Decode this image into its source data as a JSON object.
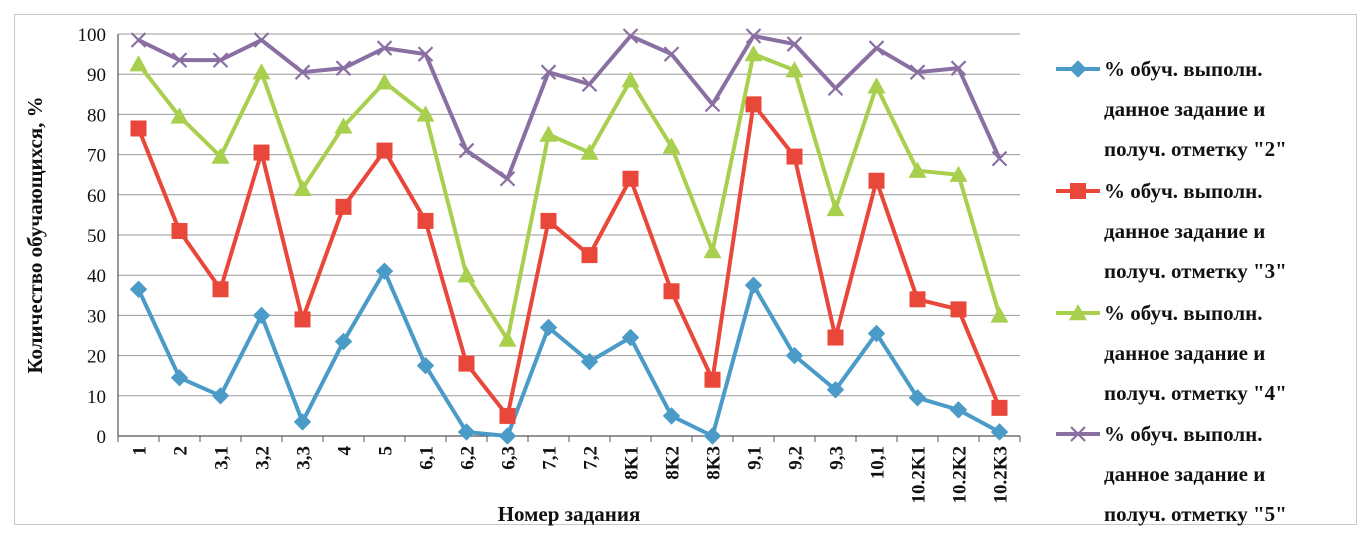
{
  "chart_data": {
    "type": "line",
    "xlabel": "Номер задания",
    "ylabel": "Количество обучающихся, %",
    "ylim": [
      0,
      100
    ],
    "yticks": [
      "0",
      "10",
      "20",
      "30",
      "40",
      "50",
      "60",
      "70",
      "80",
      "90",
      "100"
    ],
    "grid": true,
    "legend_position": "right",
    "categories": [
      "1",
      "2",
      "3,1",
      "3,2",
      "3,3",
      "4",
      "5",
      "6,1",
      "6,2",
      "6,3",
      "7,1",
      "7,2",
      "8K1",
      "8K2",
      "8K3",
      "9,1",
      "9,2",
      "9,3",
      "10,1",
      "10.2K1",
      "10.2K2",
      "10.2K3"
    ],
    "series": [
      {
        "name": "% обуч. выполн. данное задание и получ. отметку \"2\"",
        "legend_lines": [
          "% обуч. выполн.",
          "данное задание и",
          "получ. отметку \"2\""
        ],
        "color": "#4a9bc7",
        "marker": "diamond",
        "values": [
          36.5,
          14.5,
          10,
          30,
          3.5,
          23.5,
          41,
          17.5,
          1,
          0,
          27,
          18.5,
          24.5,
          5,
          0,
          37.5,
          20,
          11.5,
          25.5,
          9.5,
          6.5,
          1
        ]
      },
      {
        "name": "% обуч. выполн. данное задание и получ. отметку \"3\"",
        "legend_lines": [
          "% обуч. выполн.",
          "данное задание и",
          "получ. отметку \"3\""
        ],
        "color": "#e8473a",
        "marker": "square",
        "values": [
          76.5,
          51,
          36.5,
          70.5,
          29,
          57,
          71,
          53.5,
          18,
          5,
          53.5,
          45,
          64,
          36,
          14,
          82.5,
          69.5,
          24.5,
          63.5,
          34,
          31.5,
          7
        ]
      },
      {
        "name": "% обуч. выполн. данное задание и получ. отметку \"4\"",
        "legend_lines": [
          "% обуч. выполн.",
          "данное задание и",
          "получ. отметку \"4\""
        ],
        "color": "#a9cf4e",
        "marker": "triangle",
        "values": [
          92.5,
          79.5,
          69.5,
          90.5,
          61.5,
          77,
          88,
          80,
          40,
          24,
          75,
          70.5,
          88.5,
          72,
          46,
          95,
          91,
          56.5,
          87,
          66,
          65,
          30
        ]
      },
      {
        "name": "% обуч. выполн. данное задание и получ. отметку \"5\"",
        "legend_lines": [
          "% обуч. выполн.",
          "данное задание и",
          "получ. отметку \"5\""
        ],
        "color": "#8a6fa3",
        "marker": "x",
        "values": [
          98.5,
          93.5,
          93.5,
          98.5,
          90.5,
          91.5,
          96.5,
          95,
          71,
          64,
          90.5,
          87.5,
          99.5,
          95,
          82.5,
          99.5,
          97.5,
          86.5,
          96.5,
          90.5,
          91.5,
          69
        ]
      }
    ]
  }
}
